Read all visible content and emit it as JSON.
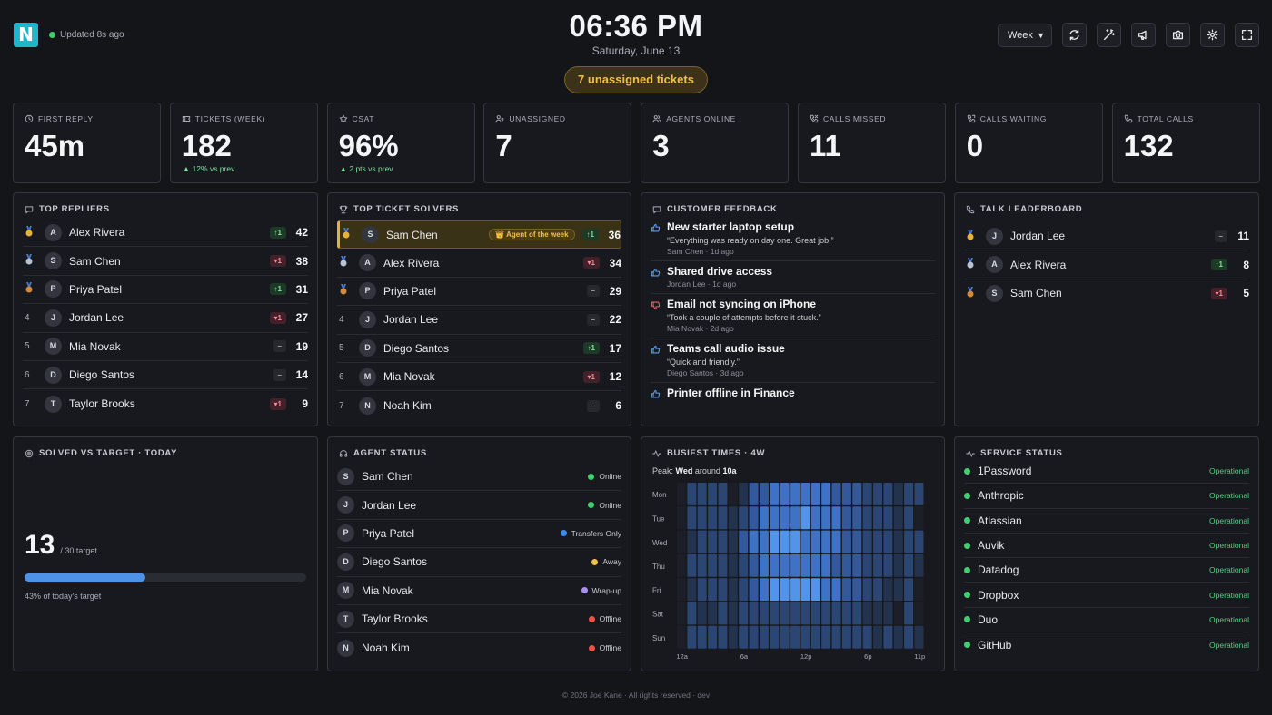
{
  "header": {
    "logo_letter": "N",
    "updated": "Updated 8s ago",
    "time": "06:36 PM",
    "date": "Saturday, June 13",
    "unassigned_alert": "7 unassigned tickets",
    "range_select": "Week",
    "icons": [
      "refresh-icon",
      "magic-wand-icon",
      "megaphone-icon",
      "camera-icon",
      "gear-icon",
      "fullscreen-icon"
    ],
    "status_color": "#3ecf6e"
  },
  "stats": [
    {
      "label": "First Reply",
      "value": "45m",
      "sub": "",
      "icon": "clock-icon"
    },
    {
      "label": "Tickets (Week)",
      "value": "182",
      "sub": "▲ 12% vs prev",
      "icon": "ticket-icon"
    },
    {
      "label": "CSAT",
      "value": "96%",
      "sub": "▲ 2 pts vs prev",
      "icon": "star-icon"
    },
    {
      "label": "Unassigned",
      "value": "7",
      "sub": "",
      "icon": "user-question-icon"
    },
    {
      "label": "Agents Online",
      "value": "3",
      "sub": "",
      "icon": "users-icon"
    },
    {
      "label": "Calls Missed",
      "value": "11",
      "sub": "",
      "icon": "phone-missed-icon"
    },
    {
      "label": "Calls Waiting",
      "value": "0",
      "sub": "",
      "icon": "phone-waiting-icon"
    },
    {
      "label": "Total Calls",
      "value": "132",
      "sub": "",
      "icon": "phone-icon"
    }
  ],
  "top_repliers": {
    "title": "Top Repliers",
    "rows": [
      {
        "rank": "1",
        "initial": "A",
        "name": "Alex Rivera",
        "change": "↑1",
        "dir": "up",
        "score": "42"
      },
      {
        "rank": "2",
        "initial": "S",
        "name": "Sam Chen",
        "change": "▾1",
        "dir": "down",
        "score": "38"
      },
      {
        "rank": "3",
        "initial": "P",
        "name": "Priya Patel",
        "change": "↑1",
        "dir": "up",
        "score": "31"
      },
      {
        "rank": "4",
        "initial": "J",
        "name": "Jordan Lee",
        "change": "▾1",
        "dir": "down",
        "score": "27"
      },
      {
        "rank": "5",
        "initial": "M",
        "name": "Mia Novak",
        "change": "–",
        "dir": "flat",
        "score": "19"
      },
      {
        "rank": "6",
        "initial": "D",
        "name": "Diego Santos",
        "change": "–",
        "dir": "flat",
        "score": "14"
      },
      {
        "rank": "7",
        "initial": "T",
        "name": "Taylor Brooks",
        "change": "▾1",
        "dir": "down",
        "score": "9"
      }
    ]
  },
  "top_solvers": {
    "title": "Top Ticket Solvers",
    "badge": "👑 Agent of the week",
    "rows": [
      {
        "rank": "1",
        "initial": "S",
        "name": "Sam Chen",
        "change": "↑1",
        "dir": "up",
        "score": "36"
      },
      {
        "rank": "2",
        "initial": "A",
        "name": "Alex Rivera",
        "change": "▾1",
        "dir": "down",
        "score": "34"
      },
      {
        "rank": "3",
        "initial": "P",
        "name": "Priya Patel",
        "change": "–",
        "dir": "flat",
        "score": "29"
      },
      {
        "rank": "4",
        "initial": "J",
        "name": "Jordan Lee",
        "change": "–",
        "dir": "flat",
        "score": "22"
      },
      {
        "rank": "5",
        "initial": "D",
        "name": "Diego Santos",
        "change": "↑1",
        "dir": "up",
        "score": "17"
      },
      {
        "rank": "6",
        "initial": "M",
        "name": "Mia Novak",
        "change": "▾1",
        "dir": "down",
        "score": "12"
      },
      {
        "rank": "7",
        "initial": "N",
        "name": "Noah Kim",
        "change": "–",
        "dir": "flat",
        "score": "6"
      }
    ]
  },
  "feedback": {
    "title": "Customer Feedback",
    "items": [
      {
        "sentiment": "up",
        "title": "New starter laptop setup",
        "quote": "“Everything was ready on day one. Great job.”",
        "meta": "Sam Chen · 1d ago"
      },
      {
        "sentiment": "up",
        "title": "Shared drive access",
        "quote": "",
        "meta": "Jordan Lee · 1d ago"
      },
      {
        "sentiment": "down",
        "title": "Email not syncing on iPhone",
        "quote": "“Took a couple of attempts before it stuck.”",
        "meta": "Mia Novak · 2d ago"
      },
      {
        "sentiment": "up",
        "title": "Teams call audio issue",
        "quote": "“Quick and friendly.”",
        "meta": "Diego Santos · 3d ago"
      },
      {
        "sentiment": "up",
        "title": "Printer offline in Finance",
        "quote": "",
        "meta": ""
      }
    ]
  },
  "talk": {
    "title": "Talk Leaderboard",
    "rows": [
      {
        "rank": "1",
        "initial": "J",
        "name": "Jordan Lee",
        "change": "–",
        "dir": "flat",
        "score": "11"
      },
      {
        "rank": "2",
        "initial": "A",
        "name": "Alex Rivera",
        "change": "↑1",
        "dir": "up",
        "score": "8"
      },
      {
        "rank": "3",
        "initial": "S",
        "name": "Sam Chen",
        "change": "▾1",
        "dir": "down",
        "score": "5"
      }
    ]
  },
  "solved": {
    "title": "Solved vs Target · Today",
    "value": "13",
    "target": "/ 30 target",
    "progress": 0.43,
    "caption": "43% of today's target"
  },
  "agent_status": {
    "title": "Agent Status",
    "rows": [
      {
        "initial": "S",
        "name": "Sam Chen",
        "status": "Online",
        "color": "#3ecf6e"
      },
      {
        "initial": "J",
        "name": "Jordan Lee",
        "status": "Online",
        "color": "#3ecf6e"
      },
      {
        "initial": "P",
        "name": "Priya Patel",
        "status": "Transfers Only",
        "color": "#3d8bf0"
      },
      {
        "initial": "D",
        "name": "Diego Santos",
        "status": "Away",
        "color": "#f0c04a"
      },
      {
        "initial": "M",
        "name": "Mia Novak",
        "status": "Wrap-up",
        "color": "#a98ef0"
      },
      {
        "initial": "T",
        "name": "Taylor Brooks",
        "status": "Offline",
        "color": "#f0504a"
      },
      {
        "initial": "N",
        "name": "Noah Kim",
        "status": "Offline",
        "color": "#f0504a"
      }
    ]
  },
  "busiest": {
    "title": "Busiest Times · 4W",
    "peak_prefix": "Peak:",
    "peak_day": "Wed",
    "peak_mid": "around",
    "peak_hour": "10a",
    "days": [
      "Mon",
      "Tue",
      "Wed",
      "Thu",
      "Fri",
      "Sat",
      "Sun"
    ],
    "hour_ticks": [
      "12a",
      "6a",
      "12p",
      "6p",
      "11p"
    ],
    "chart_data": {
      "type": "heatmap",
      "rows": [
        "Mon",
        "Tue",
        "Wed",
        "Thu",
        "Fri",
        "Sat",
        "Sun"
      ],
      "columns": 24,
      "values": [
        [
          0,
          2,
          2,
          2,
          2,
          0,
          1,
          3,
          3,
          4,
          4,
          4,
          4,
          4,
          4,
          3,
          3,
          3,
          2,
          2,
          2,
          1,
          2,
          2
        ],
        [
          0,
          2,
          2,
          2,
          2,
          1,
          2,
          3,
          4,
          4,
          4,
          4,
          5,
          4,
          4,
          4,
          3,
          3,
          2,
          2,
          2,
          1,
          2,
          0
        ],
        [
          0,
          1,
          2,
          2,
          2,
          1,
          3,
          4,
          4,
          5,
          5,
          5,
          4,
          4,
          4,
          4,
          3,
          3,
          2,
          2,
          2,
          1,
          2,
          2
        ],
        [
          0,
          2,
          2,
          2,
          2,
          1,
          2,
          3,
          4,
          4,
          4,
          4,
          4,
          4,
          4,
          3,
          3,
          3,
          2,
          2,
          2,
          1,
          2,
          1
        ],
        [
          0,
          1,
          2,
          2,
          2,
          1,
          2,
          3,
          4,
          5,
          5,
          5,
          5,
          5,
          4,
          4,
          3,
          3,
          2,
          2,
          1,
          1,
          2,
          0
        ],
        [
          0,
          2,
          1,
          1,
          2,
          1,
          2,
          2,
          2,
          2,
          2,
          2,
          2,
          2,
          2,
          2,
          2,
          2,
          1,
          1,
          1,
          0,
          2,
          0
        ],
        [
          0,
          2,
          2,
          2,
          2,
          1,
          2,
          2,
          2,
          2,
          2,
          2,
          2,
          2,
          2,
          2,
          2,
          2,
          2,
          1,
          2,
          1,
          2,
          1
        ]
      ]
    }
  },
  "services": {
    "title": "Service Status",
    "rows": [
      {
        "name": "1Password",
        "status": "Operational"
      },
      {
        "name": "Anthropic",
        "status": "Operational"
      },
      {
        "name": "Atlassian",
        "status": "Operational"
      },
      {
        "name": "Auvik",
        "status": "Operational"
      },
      {
        "name": "Datadog",
        "status": "Operational"
      },
      {
        "name": "Dropbox",
        "status": "Operational"
      },
      {
        "name": "Duo",
        "status": "Operational"
      },
      {
        "name": "GitHub",
        "status": "Operational"
      }
    ]
  },
  "footer": "© 2026 Joe Kane · All rights reserved · dev"
}
